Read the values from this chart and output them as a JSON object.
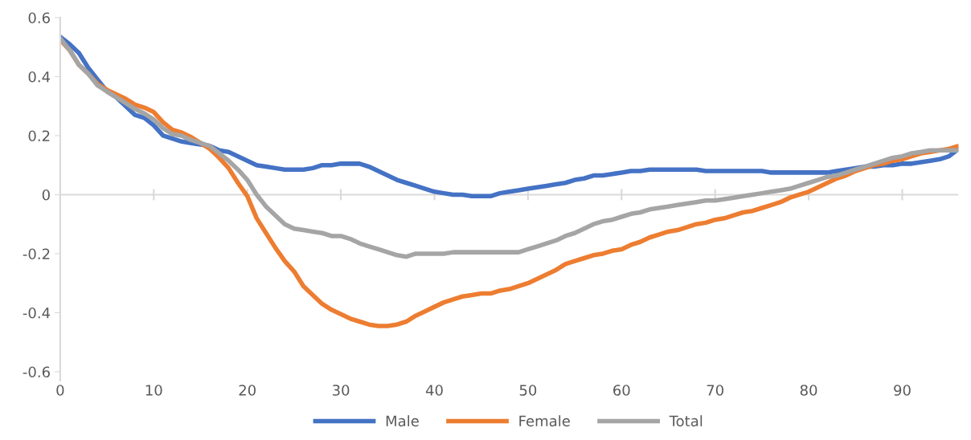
{
  "chart_data": {
    "type": "line",
    "x": [
      0,
      1,
      2,
      3,
      4,
      5,
      6,
      7,
      8,
      9,
      10,
      11,
      12,
      13,
      14,
      15,
      16,
      17,
      18,
      19,
      20,
      21,
      22,
      23,
      24,
      25,
      26,
      27,
      28,
      29,
      30,
      31,
      32,
      33,
      34,
      35,
      36,
      37,
      38,
      39,
      40,
      41,
      42,
      43,
      44,
      45,
      46,
      47,
      48,
      49,
      50,
      51,
      52,
      53,
      54,
      55,
      56,
      57,
      58,
      59,
      60,
      61,
      62,
      63,
      64,
      65,
      66,
      67,
      68,
      69,
      70,
      71,
      72,
      73,
      74,
      75,
      76,
      77,
      78,
      79,
      80,
      81,
      82,
      83,
      84,
      85,
      86,
      87,
      88,
      89,
      90,
      91,
      92,
      93,
      94,
      95,
      96
    ],
    "series": [
      {
        "name": "Male",
        "color": "#4472c4",
        "values": [
          0.535,
          0.51,
          0.48,
          0.43,
          0.39,
          0.35,
          0.33,
          0.3,
          0.27,
          0.26,
          0.235,
          0.2,
          0.19,
          0.18,
          0.175,
          0.17,
          0.165,
          0.15,
          0.145,
          0.13,
          0.115,
          0.1,
          0.095,
          0.09,
          0.085,
          0.085,
          0.085,
          0.09,
          0.1,
          0.1,
          0.105,
          0.105,
          0.105,
          0.095,
          0.08,
          0.065,
          0.05,
          0.04,
          0.03,
          0.02,
          0.01,
          0.005,
          0.0,
          0.0,
          -0.005,
          -0.005,
          -0.005,
          0.005,
          0.01,
          0.015,
          0.02,
          0.025,
          0.03,
          0.035,
          0.04,
          0.05,
          0.055,
          0.065,
          0.065,
          0.07,
          0.075,
          0.08,
          0.08,
          0.085,
          0.085,
          0.085,
          0.085,
          0.085,
          0.085,
          0.08,
          0.08,
          0.08,
          0.08,
          0.08,
          0.08,
          0.08,
          0.075,
          0.075,
          0.075,
          0.075,
          0.075,
          0.075,
          0.075,
          0.08,
          0.085,
          0.09,
          0.095,
          0.095,
          0.1,
          0.1,
          0.105,
          0.105,
          0.11,
          0.115,
          0.12,
          0.13,
          0.155
        ]
      },
      {
        "name": "Female",
        "color": "#ed7d31",
        "values": [
          0.525,
          0.49,
          0.44,
          0.41,
          0.375,
          0.355,
          0.34,
          0.325,
          0.305,
          0.295,
          0.28,
          0.245,
          0.22,
          0.21,
          0.195,
          0.175,
          0.155,
          0.125,
          0.09,
          0.04,
          -0.005,
          -0.08,
          -0.13,
          -0.18,
          -0.225,
          -0.26,
          -0.31,
          -0.34,
          -0.37,
          -0.39,
          -0.405,
          -0.42,
          -0.43,
          -0.44,
          -0.445,
          -0.445,
          -0.44,
          -0.43,
          -0.41,
          -0.395,
          -0.38,
          -0.365,
          -0.355,
          -0.345,
          -0.34,
          -0.335,
          -0.335,
          -0.325,
          -0.32,
          -0.31,
          -0.3,
          -0.285,
          -0.27,
          -0.255,
          -0.235,
          -0.225,
          -0.215,
          -0.205,
          -0.2,
          -0.19,
          -0.185,
          -0.17,
          -0.16,
          -0.145,
          -0.135,
          -0.125,
          -0.12,
          -0.11,
          -0.1,
          -0.095,
          -0.085,
          -0.08,
          -0.07,
          -0.06,
          -0.055,
          -0.045,
          -0.035,
          -0.025,
          -0.01,
          0.0,
          0.01,
          0.025,
          0.04,
          0.055,
          0.065,
          0.08,
          0.09,
          0.1,
          0.105,
          0.115,
          0.12,
          0.13,
          0.14,
          0.145,
          0.15,
          0.155,
          0.165
        ]
      },
      {
        "name": "Total",
        "color": "#a5a5a5",
        "values": [
          0.53,
          0.49,
          0.44,
          0.41,
          0.37,
          0.35,
          0.33,
          0.31,
          0.29,
          0.275,
          0.255,
          0.225,
          0.205,
          0.2,
          0.185,
          0.175,
          0.165,
          0.14,
          0.115,
          0.085,
          0.05,
          0.0,
          -0.04,
          -0.07,
          -0.1,
          -0.115,
          -0.12,
          -0.125,
          -0.13,
          -0.14,
          -0.14,
          -0.15,
          -0.165,
          -0.175,
          -0.185,
          -0.195,
          -0.205,
          -0.21,
          -0.2,
          -0.2,
          -0.2,
          -0.2,
          -0.195,
          -0.195,
          -0.195,
          -0.195,
          -0.195,
          -0.195,
          -0.195,
          -0.195,
          -0.185,
          -0.175,
          -0.165,
          -0.155,
          -0.14,
          -0.13,
          -0.115,
          -0.1,
          -0.09,
          -0.085,
          -0.075,
          -0.065,
          -0.06,
          -0.05,
          -0.045,
          -0.04,
          -0.035,
          -0.03,
          -0.025,
          -0.02,
          -0.02,
          -0.015,
          -0.01,
          -0.005,
          0.0,
          0.005,
          0.01,
          0.015,
          0.02,
          0.03,
          0.04,
          0.05,
          0.06,
          0.065,
          0.075,
          0.085,
          0.095,
          0.105,
          0.115,
          0.125,
          0.13,
          0.14,
          0.145,
          0.15,
          0.15,
          0.15,
          0.15
        ]
      }
    ],
    "xlim": [
      0,
      96
    ],
    "xticks": [
      0,
      10,
      20,
      30,
      40,
      50,
      60,
      70,
      80,
      90
    ],
    "ylim": [
      -0.63,
      0.6
    ],
    "yticks": [
      {
        "value": -0.6,
        "label": "-0.6"
      },
      {
        "value": -0.4,
        "label": "-0.4"
      },
      {
        "value": -0.2,
        "label": "-0.2"
      },
      0,
      0.2,
      0.4,
      0.6
    ],
    "ref_lines": [
      {
        "axis": "y",
        "value": 0,
        "color": "#d9d9d9"
      }
    ],
    "grid": false,
    "legend": "bottom",
    "marker": "none",
    "line_style": "solid"
  }
}
